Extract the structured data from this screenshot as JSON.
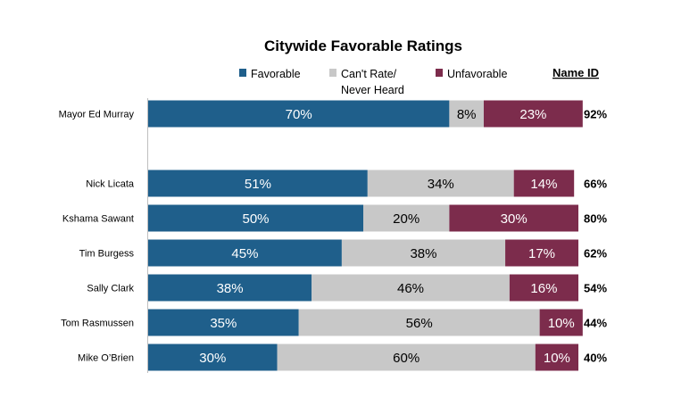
{
  "chart_data": {
    "type": "bar",
    "orientation": "horizontal",
    "stacked": true,
    "title": "Citywide Favorable Ratings",
    "categories": [
      "Mayor Ed Murray",
      "Nick Licata",
      "Kshama Sawant",
      "Tim Burgess",
      "Sally Clark",
      "Tom Rasmussen",
      "Mike O’Brien"
    ],
    "series": [
      {
        "name": "Favorable",
        "color": "#1f5f8b",
        "values": [
          70,
          51,
          50,
          45,
          38,
          35,
          30
        ]
      },
      {
        "name": "Can't Rate/ Never Heard",
        "name_lines": [
          "Can't Rate/",
          "Never Heard"
        ],
        "color": "#c8c8c8",
        "values": [
          8,
          34,
          20,
          38,
          46,
          56,
          60
        ]
      },
      {
        "name": "Unfavorable",
        "color": "#7c2c4c",
        "values": [
          23,
          14,
          30,
          17,
          16,
          10,
          10
        ]
      }
    ],
    "name_id": {
      "label": "Name ID",
      "values": [
        "92%",
        "66%",
        "80%",
        "62%",
        "54%",
        "44%",
        "40%"
      ]
    },
    "xlim": [
      0,
      100
    ],
    "legend_position": "top",
    "grid": false,
    "value_suffix": "%"
  }
}
